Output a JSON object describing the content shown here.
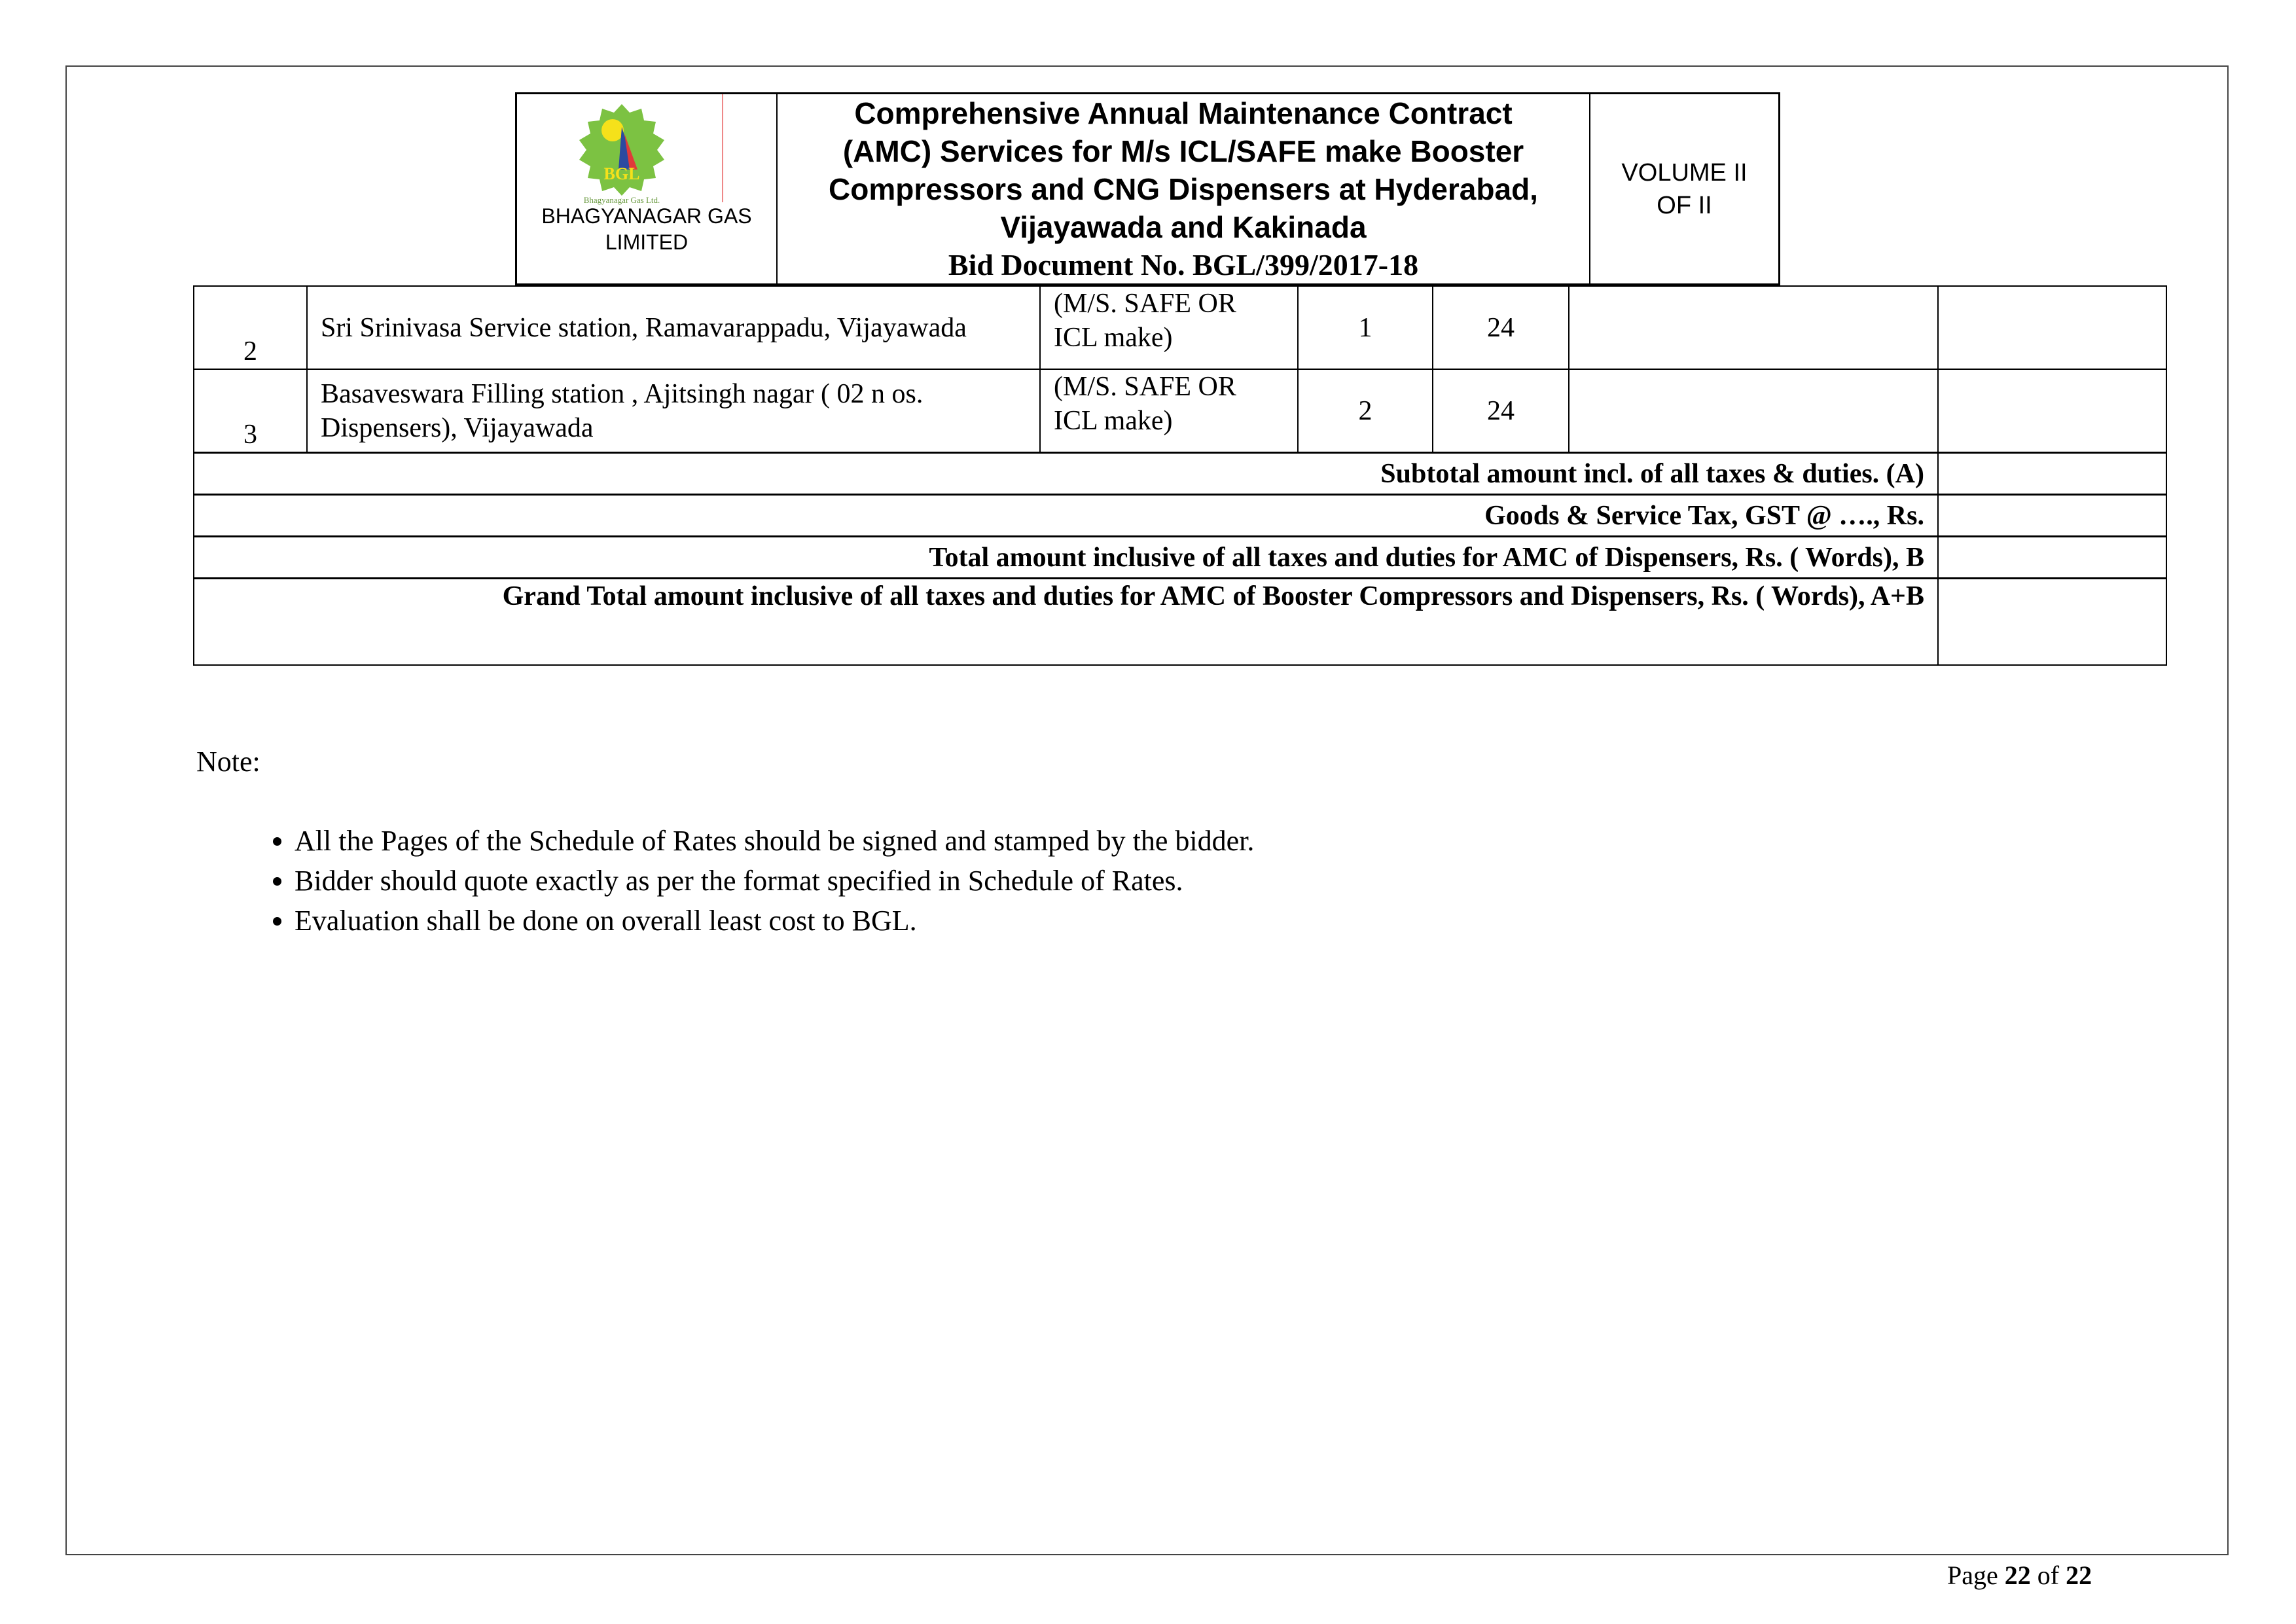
{
  "header": {
    "company": "BHAGYANAGAR GAS LIMITED",
    "logo_text": "BGL",
    "logo_caption": "Bhagyanagar Gas Ltd.",
    "title_lines": [
      "Comprehensive Annual Maintenance Contract",
      "(AMC) Services for M/s ICL/SAFE make Booster",
      "Compressors and CNG Dispensers at Hyderabad,",
      "Vijayawada and Kakinada"
    ],
    "bid_no": "Bid Document No. BGL/399/2017-18",
    "volume_line1": "VOLUME II",
    "volume_line2": "OF II"
  },
  "table": {
    "rows": [
      {
        "sno": "2",
        "location": "Sri Srinivasa Service station, Ramavarappadu, Vijayawada",
        "make": "(M/S. SAFE OR ICL make)",
        "qty": "1",
        "months": "24",
        "rate": "",
        "amount": ""
      },
      {
        "sno": "3",
        "location": "Basaveswara Filling station , Ajitsingh nagar  ( 02 n os. Dispensers), Vijayawada",
        "make": "(M/S. SAFE OR ICL make)",
        "qty": "2",
        "months": "24",
        "rate": "",
        "amount": ""
      }
    ],
    "subtotal": "Subtotal amount incl. of all taxes & duties.  (A)",
    "gst": "Goods & Service Tax, GST @ …., Rs.",
    "total_b": "Total amount inclusive of all taxes and duties for AMC of Dispensers, Rs. ( Words), B",
    "grand_total": "Grand Total amount inclusive of all taxes and duties for AMC of Booster Compressors and  Dispensers, Rs. ( Words), A+B"
  },
  "note": {
    "heading": "Note:",
    "items": [
      "All the Pages of the Schedule of Rates should be signed and stamped by the bidder.",
      "Bidder should quote exactly as per the format specified in Schedule of Rates.",
      "Evaluation shall be done on overall least cost to BGL."
    ]
  },
  "footer": {
    "page_label": "Page",
    "page": "22",
    "of_label": "of",
    "total": "22"
  }
}
